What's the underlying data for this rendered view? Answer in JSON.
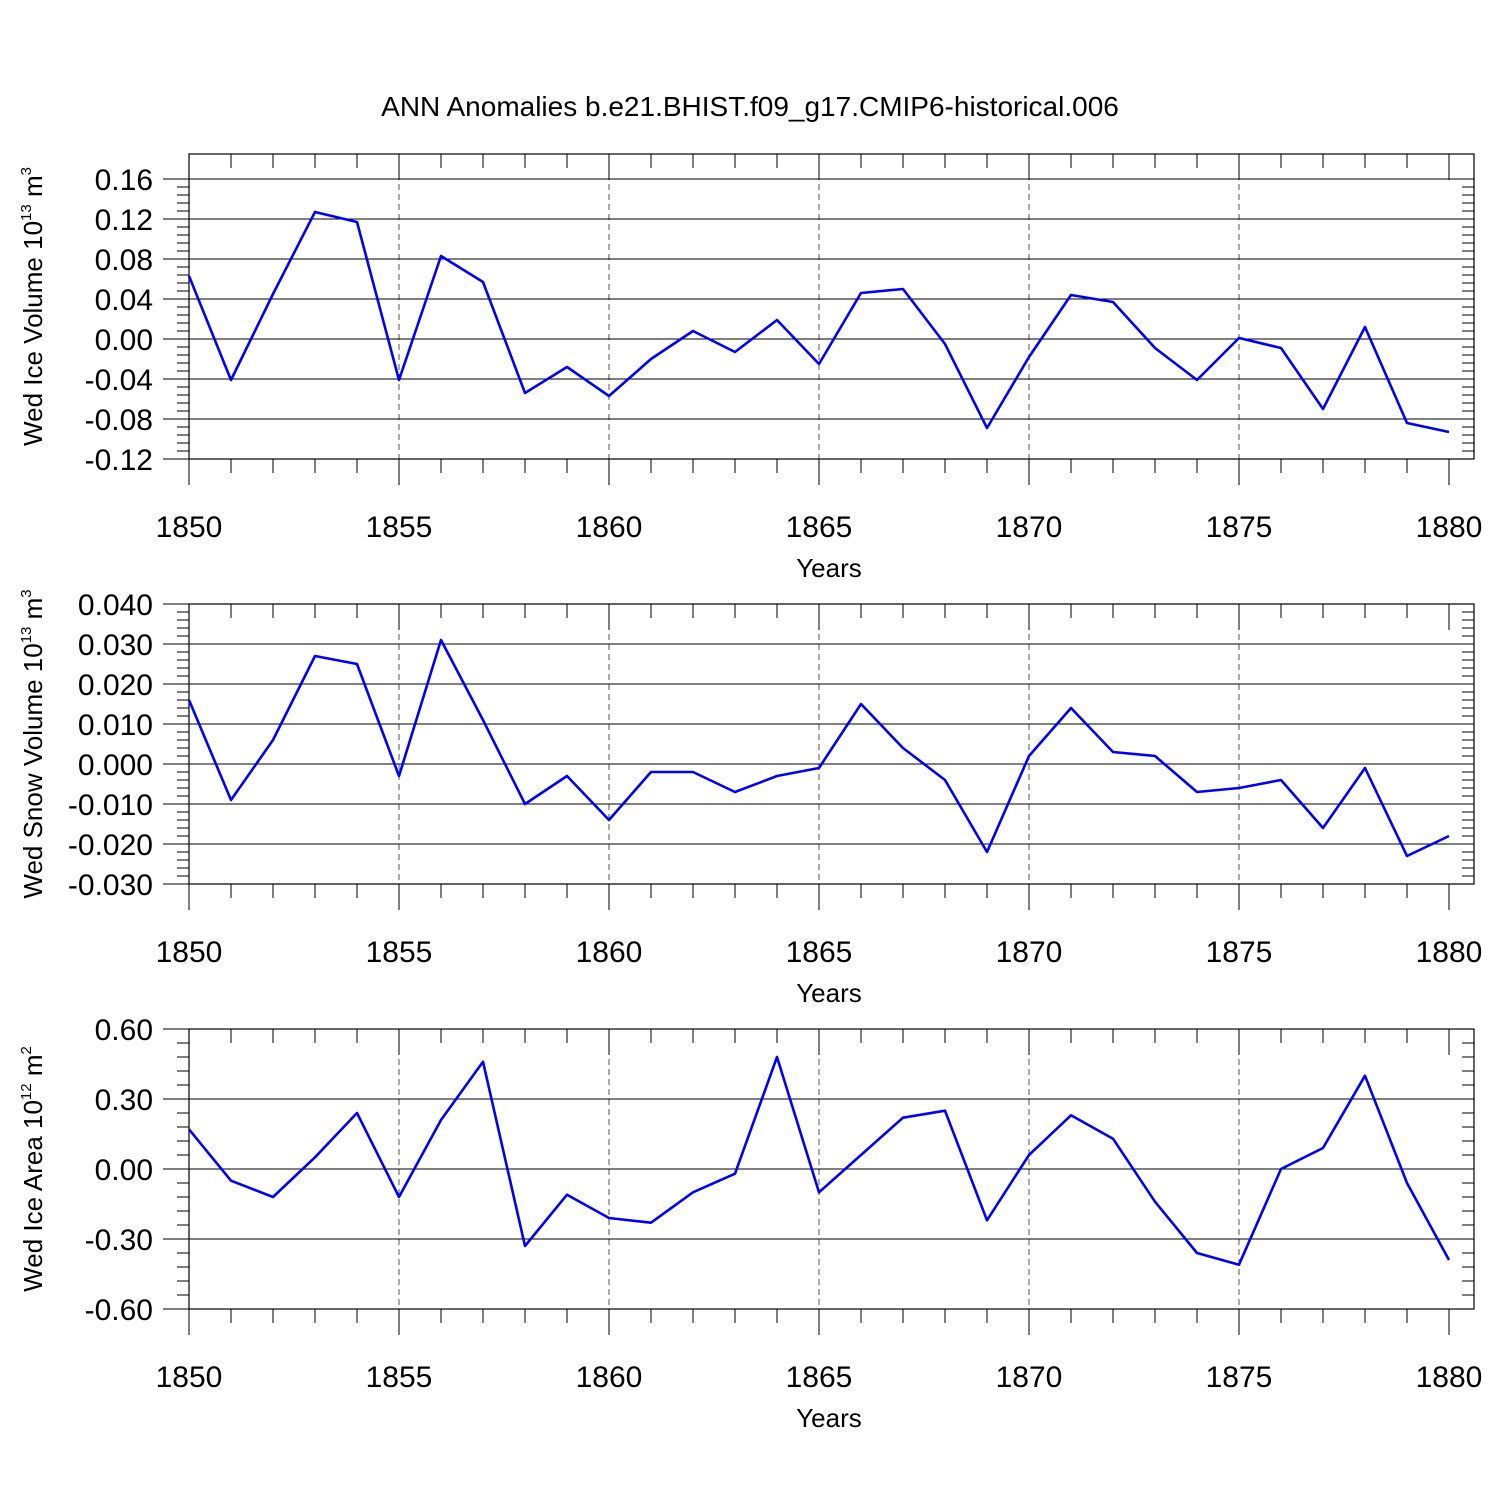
{
  "figure": {
    "title": "ANN Anomalies b.e21.BHIST.f09_g17.CMIP6-historical.006"
  },
  "chart_data": [
    {
      "type": "line",
      "ylabel": {
        "text": "Wed Ice Volume 10",
        "exponent": "13",
        "unit": " m",
        "unit_exponent": "3"
      },
      "xlabel": "Years",
      "xlim": [
        1850,
        1880
      ],
      "ylim": [
        -0.12,
        0.16
      ],
      "x_ticks": [
        1850,
        1855,
        1860,
        1865,
        1870,
        1875,
        1880
      ],
      "y_ticks": [
        -0.12,
        -0.08,
        -0.04,
        0.0,
        0.04,
        0.08,
        0.12,
        0.16
      ],
      "y_tick_labels": [
        "-0.12",
        "-0.08",
        "-0.04",
        "0.00",
        "0.04",
        "0.08",
        "0.12",
        "0.16"
      ],
      "y_minor_step": 0.008,
      "dashed_gridlines_x": [
        1855,
        1860,
        1865,
        1870,
        1875
      ],
      "color": "#0000ff",
      "series": [
        {
          "x": [
            1850,
            1851,
            1852,
            1853,
            1854,
            1855,
            1856,
            1857,
            1858,
            1859,
            1860,
            1861,
            1862,
            1863,
            1864,
            1865,
            1866,
            1867,
            1868,
            1869,
            1870,
            1871,
            1872,
            1873,
            1874,
            1875,
            1876,
            1877,
            1878,
            1879,
            1880
          ],
          "values": [
            0.063,
            -0.041,
            0.045,
            0.127,
            0.117,
            -0.041,
            0.083,
            0.057,
            -0.054,
            -0.028,
            -0.057,
            -0.02,
            0.008,
            -0.013,
            0.019,
            -0.025,
            0.046,
            0.05,
            -0.005,
            -0.089,
            -0.018,
            0.044,
            0.037,
            -0.009,
            -0.041,
            0.001,
            -0.009,
            -0.07,
            0.012,
            -0.084,
            -0.093
          ]
        }
      ]
    },
    {
      "type": "line",
      "ylabel": {
        "text": "Wed Snow Volume 10",
        "exponent": "13",
        "unit": " m",
        "unit_exponent": "3"
      },
      "xlabel": "Years",
      "xlim": [
        1850,
        1880
      ],
      "ylim": [
        -0.03,
        0.04
      ],
      "x_ticks": [
        1850,
        1855,
        1860,
        1865,
        1870,
        1875,
        1880
      ],
      "y_ticks": [
        -0.03,
        -0.02,
        -0.01,
        0.0,
        0.01,
        0.02,
        0.03,
        0.04
      ],
      "y_tick_labels": [
        "-0.030",
        "-0.020",
        "-0.010",
        "0.000",
        "0.010",
        "0.020",
        "0.030",
        "0.040"
      ],
      "y_minor_step": 0.002,
      "dashed_gridlines_x": [
        1855,
        1860,
        1865,
        1870,
        1875
      ],
      "color": "#0000ff",
      "series": [
        {
          "x": [
            1850,
            1851,
            1852,
            1853,
            1854,
            1855,
            1856,
            1857,
            1858,
            1859,
            1860,
            1861,
            1862,
            1863,
            1864,
            1865,
            1866,
            1867,
            1868,
            1869,
            1870,
            1871,
            1872,
            1873,
            1874,
            1875,
            1876,
            1877,
            1878,
            1879,
            1880
          ],
          "values": [
            0.016,
            -0.009,
            0.006,
            0.027,
            0.025,
            -0.003,
            0.031,
            0.011,
            -0.01,
            -0.003,
            -0.014,
            -0.002,
            -0.002,
            -0.007,
            -0.003,
            -0.001,
            0.015,
            0.004,
            -0.004,
            -0.022,
            0.002,
            0.014,
            0.003,
            0.002,
            -0.007,
            -0.006,
            -0.004,
            -0.016,
            -0.001,
            -0.023,
            -0.018
          ]
        }
      ]
    },
    {
      "type": "line",
      "ylabel": {
        "text": "Wed Ice Area 10",
        "exponent": "12",
        "unit": " m",
        "unit_exponent": "2"
      },
      "xlabel": "Years",
      "xlim": [
        1850,
        1880
      ],
      "ylim": [
        -0.6,
        0.6
      ],
      "x_ticks": [
        1850,
        1855,
        1860,
        1865,
        1870,
        1875,
        1880
      ],
      "y_ticks": [
        -0.6,
        -0.3,
        0.0,
        0.3,
        0.6
      ],
      "y_tick_labels": [
        "-0.60",
        "-0.30",
        "0.00",
        "0.30",
        "0.60"
      ],
      "y_minor_step": 0.06,
      "dashed_gridlines_x": [
        1855,
        1860,
        1865,
        1870,
        1875
      ],
      "color": "#0000ff",
      "series": [
        {
          "x": [
            1850,
            1851,
            1852,
            1853,
            1854,
            1855,
            1856,
            1857,
            1858,
            1859,
            1860,
            1861,
            1862,
            1863,
            1864,
            1865,
            1866,
            1867,
            1868,
            1869,
            1870,
            1871,
            1872,
            1873,
            1874,
            1875,
            1876,
            1877,
            1878,
            1879,
            1880
          ],
          "values": [
            0.17,
            -0.05,
            -0.12,
            0.05,
            0.24,
            -0.12,
            0.21,
            0.46,
            -0.33,
            -0.11,
            -0.21,
            -0.23,
            -0.1,
            -0.02,
            0.48,
            -0.1,
            0.06,
            0.22,
            0.25,
            -0.22,
            0.06,
            0.23,
            0.13,
            -0.14,
            -0.36,
            -0.41,
            0.0,
            0.09,
            0.4,
            -0.06,
            -0.39
          ]
        }
      ]
    }
  ]
}
